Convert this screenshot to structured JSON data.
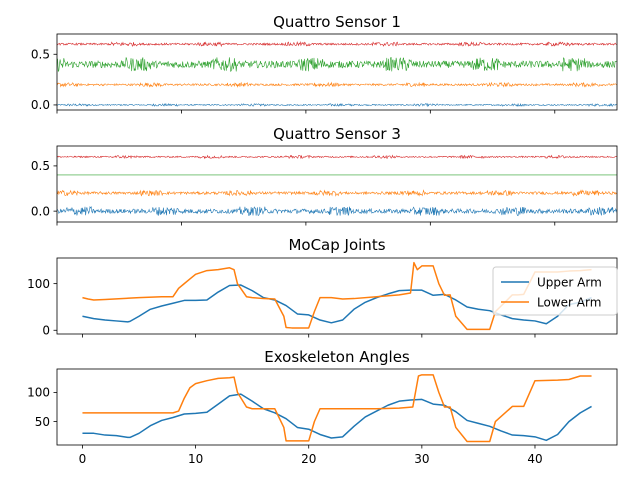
{
  "colors": {
    "c0": "#1f77b4",
    "c1": "#ff7f0e",
    "c2": "#2ca02c",
    "c3": "#d62728"
  },
  "chart_data": [
    {
      "type": "line",
      "title": "Quattro Sensor 1",
      "xlim": [
        0,
        45
      ],
      "ylim": [
        -0.05,
        0.7
      ],
      "yticks": [
        0.0,
        0.5
      ],
      "ytick_labels": [
        "0.0",
        "0.5"
      ],
      "xtick_labels_visible": false,
      "grid": false,
      "series": [
        {
          "color": "#1f77b4",
          "x": [
            0,
            45
          ],
          "values": [
            0.0,
            0.0
          ],
          "noise": 0.006
        },
        {
          "color": "#ff7f0e",
          "x": [
            0,
            45
          ],
          "values": [
            0.2,
            0.2
          ],
          "noise": 0.01
        },
        {
          "color": "#2ca02c",
          "x": [
            0,
            45
          ],
          "values": [
            0.4,
            0.4
          ],
          "noise": 0.035
        },
        {
          "color": "#d62728",
          "x": [
            0,
            45
          ],
          "values": [
            0.6,
            0.6
          ],
          "noise": 0.01
        }
      ]
    },
    {
      "type": "line",
      "title": "Quattro Sensor 3",
      "xlim": [
        0,
        45
      ],
      "ylim": [
        -0.12,
        0.72
      ],
      "yticks": [
        0.0,
        0.5
      ],
      "ytick_labels": [
        "0.0",
        "0.5"
      ],
      "xtick_labels_visible": false,
      "grid": false,
      "series": [
        {
          "color": "#1f77b4",
          "x": [
            0,
            45
          ],
          "values": [
            0.0,
            0.0
          ],
          "noise": 0.025
        },
        {
          "color": "#ff7f0e",
          "x": [
            0,
            45
          ],
          "values": [
            0.2,
            0.2
          ],
          "noise": 0.015
        },
        {
          "color": "#2ca02c",
          "x": [
            0,
            45
          ],
          "values": [
            0.4,
            0.4
          ],
          "noise": 0.0
        },
        {
          "color": "#d62728",
          "x": [
            0,
            45
          ],
          "values": [
            0.6,
            0.6
          ],
          "noise": 0.008
        }
      ]
    },
    {
      "type": "line",
      "title": "MoCap Joints",
      "xlim": [
        -2.25,
        47.25
      ],
      "ylim": [
        -8,
        155
      ],
      "yticks": [
        0,
        100
      ],
      "ytick_labels": [
        "0",
        "100"
      ],
      "xtick_labels_visible": false,
      "grid": false,
      "legend": {
        "placement": "right",
        "entries": [
          "Upper Arm",
          "Lower Arm"
        ]
      },
      "series": [
        {
          "name": "Upper Arm",
          "color": "#1f77b4",
          "x": [
            0,
            1,
            2,
            3,
            4,
            4.2,
            5,
            6,
            7,
            8,
            9,
            10,
            11,
            12,
            13,
            14,
            15,
            16,
            17,
            18,
            19,
            20,
            21,
            22,
            23,
            24,
            25,
            26,
            27,
            28,
            29,
            30,
            31,
            32,
            33,
            34,
            35,
            36,
            37,
            38,
            39,
            40,
            41,
            42,
            43,
            44,
            45
          ],
          "values": [
            30,
            25,
            22,
            20,
            18,
            19,
            30,
            45,
            52,
            58,
            64,
            64,
            65,
            82,
            96,
            97,
            85,
            70,
            65,
            53,
            35,
            33,
            22,
            16,
            22,
            45,
            60,
            70,
            78,
            85,
            86,
            86,
            75,
            77,
            65,
            50,
            45,
            42,
            33,
            25,
            22,
            20,
            14,
            30,
            55,
            60,
            70
          ]
        },
        {
          "name": "Lower Arm",
          "color": "#ff7f0e",
          "x": [
            0,
            0.5,
            1,
            2,
            5,
            7,
            8,
            8.5,
            9,
            9.5,
            10,
            11,
            12,
            13,
            13.4,
            13.7,
            14.5,
            15,
            16,
            17,
            17.8,
            18,
            18.5,
            20,
            20.5,
            21,
            22,
            23,
            24,
            26,
            28,
            29,
            29.3,
            29.6,
            30,
            31,
            31.5,
            32,
            32.5,
            33,
            34,
            35,
            35.8,
            36,
            36.5,
            38,
            38.5,
            39,
            40,
            42,
            43,
            44,
            45
          ],
          "values": [
            70,
            67,
            65,
            66,
            70,
            72,
            72,
            90,
            100,
            110,
            120,
            128,
            130,
            134,
            130,
            100,
            72,
            70,
            68,
            67,
            30,
            6,
            5,
            5,
            40,
            70,
            70,
            67,
            68,
            72,
            76,
            80,
            145,
            130,
            138,
            138,
            100,
            75,
            76,
            30,
            2,
            2,
            2,
            2,
            40,
            76,
            76,
            77,
            125,
            125,
            127,
            128,
            130
          ]
        }
      ]
    },
    {
      "type": "line",
      "title": "Exoskeleton Angles",
      "xlim": [
        -2.25,
        47.25
      ],
      "ylim": [
        10,
        140
      ],
      "yticks": [
        50,
        100
      ],
      "ytick_labels": [
        "50",
        "100"
      ],
      "xticks": [
        0,
        10,
        20,
        30,
        40
      ],
      "xtick_labels": [
        "0",
        "10",
        "20",
        "30",
        "40"
      ],
      "grid": false,
      "series": [
        {
          "color": "#1f77b4",
          "x": [
            0,
            1,
            2,
            3,
            4,
            4.2,
            5,
            6,
            7,
            8,
            9,
            10,
            11,
            12,
            13,
            14,
            15,
            16,
            17,
            18,
            19,
            20,
            21,
            22,
            23,
            24,
            25,
            26,
            27,
            28,
            29,
            30,
            31,
            32,
            33,
            34,
            35,
            36,
            37,
            38,
            39,
            40,
            41,
            42,
            43,
            44,
            45
          ],
          "values": [
            30,
            30,
            27,
            26,
            23,
            23,
            30,
            43,
            52,
            57,
            63,
            64,
            66,
            80,
            94,
            97,
            85,
            72,
            65,
            55,
            40,
            37,
            28,
            22,
            24,
            42,
            58,
            68,
            78,
            85,
            87,
            88,
            80,
            78,
            67,
            52,
            47,
            42,
            34,
            27,
            26,
            24,
            18,
            28,
            50,
            65,
            76
          ]
        },
        {
          "color": "#ff7f0e",
          "x": [
            0,
            1,
            2,
            5,
            7,
            8,
            8.5,
            9,
            9.5,
            10,
            11,
            12,
            13,
            13.4,
            13.7,
            14.5,
            15,
            16,
            17,
            17.8,
            18,
            18.5,
            20,
            20.5,
            21,
            22,
            24,
            26,
            28,
            29.2,
            29.7,
            30,
            31,
            31.5,
            32,
            32.5,
            33,
            34,
            35,
            35.8,
            36,
            36.5,
            38,
            38.5,
            39,
            40,
            42,
            43,
            44,
            45
          ],
          "values": [
            65,
            65,
            65,
            65,
            65,
            65,
            68,
            90,
            108,
            115,
            120,
            124,
            125,
            126,
            100,
            75,
            72,
            72,
            72,
            40,
            17,
            17,
            17,
            50,
            72,
            72,
            72,
            72,
            73,
            75,
            128,
            130,
            130,
            100,
            75,
            75,
            40,
            16,
            16,
            16,
            16,
            50,
            76,
            76,
            76,
            120,
            121,
            122,
            128,
            128
          ]
        }
      ]
    }
  ]
}
